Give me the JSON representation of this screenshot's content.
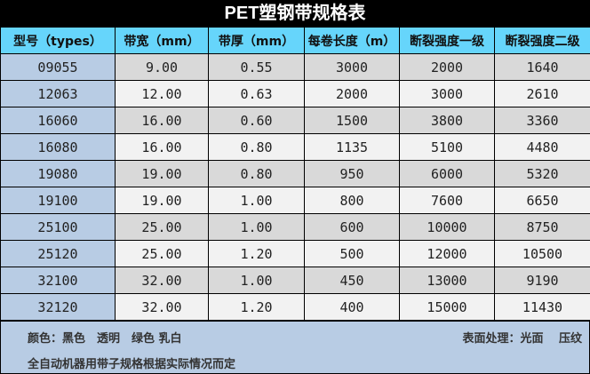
{
  "title": "PET塑钢带规格表",
  "headers": [
    "型号（types）",
    "带宽（mm）",
    "带厚（mm）",
    "每卷长度（m）",
    "断裂强度一级",
    "断裂强度二级"
  ],
  "rows": [
    [
      "09055",
      "9.00",
      "0.55",
      "3000",
      "2000",
      "1640"
    ],
    [
      "12063",
      "12.00",
      "0.63",
      "2000",
      "3000",
      "2610"
    ],
    [
      "16060",
      "16.00",
      "0.60",
      "1500",
      "3800",
      "3360"
    ],
    [
      "16080",
      "16.00",
      "0.80",
      "1135",
      "5100",
      "4480"
    ],
    [
      "19080",
      "19.00",
      "0.80",
      "950",
      "6000",
      "5320"
    ],
    [
      "19100",
      "19.00",
      "1.00",
      "800",
      "7600",
      "6650"
    ],
    [
      "25100",
      "25.00",
      "1.00",
      "600",
      "10000",
      "8750"
    ],
    [
      "25120",
      "25.00",
      "1.20",
      "500",
      "12000",
      "10500"
    ],
    [
      "32100",
      "32.00",
      "1.00",
      "450",
      "13000",
      "9190"
    ],
    [
      "32120",
      "32.00",
      "1.20",
      "400",
      "15000",
      "11430"
    ]
  ],
  "footer": {
    "colors": "颜色：黑色　透明　绿色 乳白",
    "surface": "表面处理：光面　 压纹",
    "note": "全自动机器用带子规格根据实际情况而定"
  }
}
